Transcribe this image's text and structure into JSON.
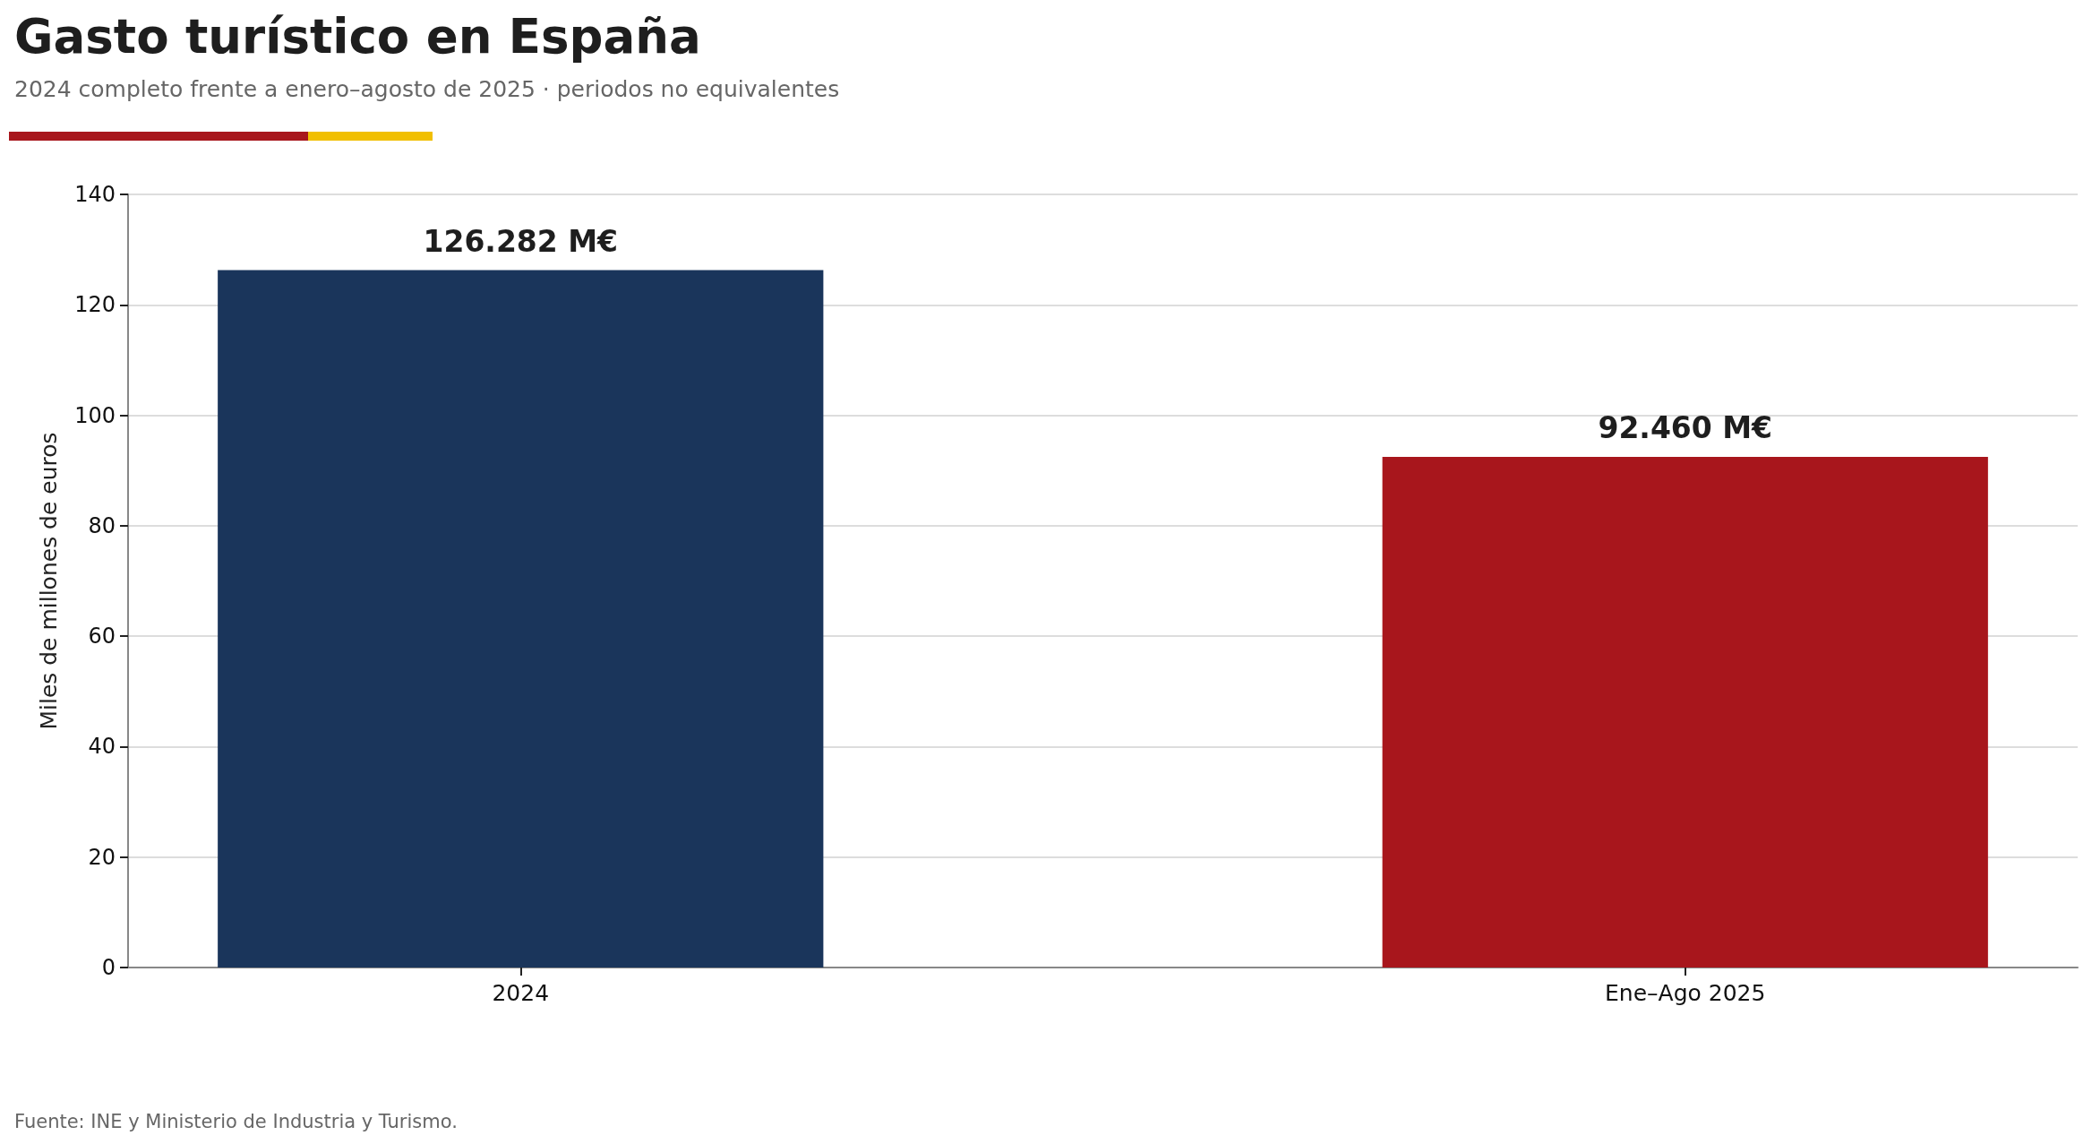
{
  "chart_data": {
    "type": "bar",
    "title": "Gasto turístico en España",
    "subtitle": "2024 completo frente a enero–agosto de 2025 · periodos no equivalentes",
    "ylabel": "Miles de millones de euros",
    "categories": [
      "2024",
      "Ene–Ago 2025"
    ],
    "values": [
      126.282,
      92.46
    ],
    "colors": [
      "#1a355b",
      "#a8161c"
    ],
    "value_labels": [
      "126.282 M€",
      "92.460 M€"
    ],
    "ylim": [
      0,
      140
    ],
    "yticks": [
      0,
      20,
      40,
      60,
      80,
      100,
      120,
      140
    ],
    "grid": "y",
    "annotations": [
      "Fuente: INE y Ministerio de Industria y Turismo."
    ]
  }
}
